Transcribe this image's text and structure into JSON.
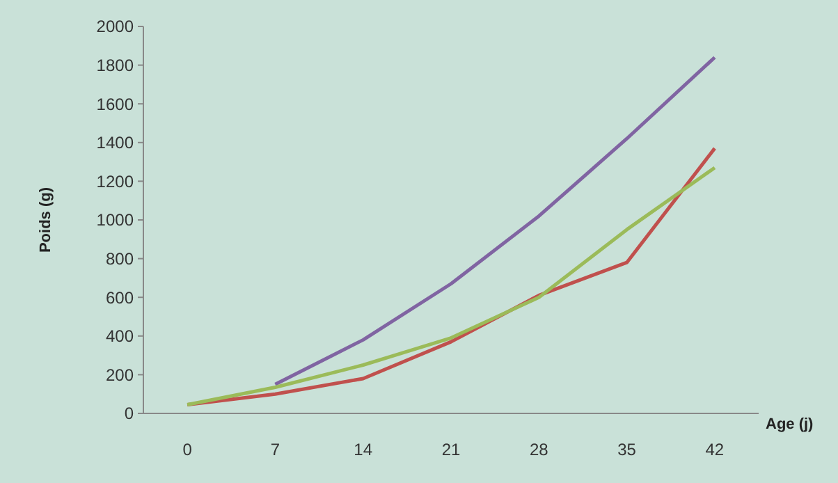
{
  "chart_data": {
    "type": "line",
    "xlabel": "Age (j)",
    "ylabel": "Poids (g)",
    "categories": [
      "0",
      "7",
      "14",
      "21",
      "28",
      "35",
      "42"
    ],
    "ylim": [
      0,
      2000
    ],
    "yticks": [
      0,
      200,
      400,
      600,
      800,
      1000,
      1200,
      1400,
      1600,
      1800,
      2000
    ],
    "grid": false,
    "series": [
      {
        "color": "#8064a2",
        "values": [
          null,
          150,
          380,
          670,
          1020,
          1420,
          1840
        ]
      },
      {
        "color": "#c0504d",
        "values": [
          45,
          100,
          180,
          370,
          610,
          780,
          1370
        ]
      },
      {
        "color": "#9bbb59",
        "values": [
          45,
          135,
          250,
          390,
          600,
          950,
          1270
        ]
      }
    ]
  }
}
